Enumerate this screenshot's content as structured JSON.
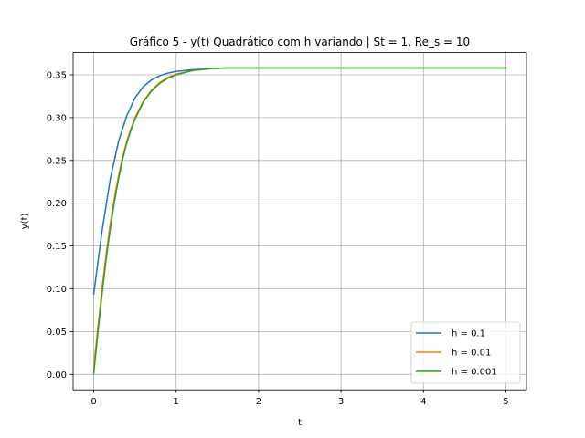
{
  "chart_data": {
    "type": "line",
    "title": "Gráfico 5 - y(t) Quadrático com h variando | St = 1, Re_s = 10",
    "xlabel": "t",
    "ylabel": "y(t)",
    "xlim": [
      -0.25,
      5.25
    ],
    "ylim": [
      -0.018,
      0.376
    ],
    "xticks": [
      0,
      1,
      2,
      3,
      4,
      5
    ],
    "xtick_labels": [
      "0",
      "1",
      "2",
      "3",
      "4",
      "5"
    ],
    "yticks": [
      0.0,
      0.05,
      0.1,
      0.15,
      0.2,
      0.25,
      0.3,
      0.35
    ],
    "ytick_labels": [
      "0.00",
      "0.05",
      "0.10",
      "0.15",
      "0.20",
      "0.25",
      "0.30",
      "0.35"
    ],
    "grid": true,
    "legend_position": "lower-right",
    "series": [
      {
        "name": "h = 0.1",
        "color": "#1f77b4",
        "x": [
          0,
          0.1,
          0.2,
          0.3,
          0.4,
          0.5,
          0.6,
          0.7,
          0.8,
          0.9,
          1.0,
          1.2,
          1.4,
          1.6,
          2.0,
          3.0,
          4.0,
          5.0
        ],
        "y": [
          0.094,
          0.167,
          0.228,
          0.272,
          0.302,
          0.323,
          0.336,
          0.344,
          0.349,
          0.352,
          0.354,
          0.356,
          0.357,
          0.358,
          0.358,
          0.358,
          0.358,
          0.358
        ]
      },
      {
        "name": "h = 0.01",
        "color": "#ff7f0e",
        "x": [
          0,
          0.05,
          0.1,
          0.15,
          0.2,
          0.25,
          0.3,
          0.35,
          0.4,
          0.45,
          0.5,
          0.6,
          0.7,
          0.8,
          0.9,
          1.0,
          1.2,
          1.4,
          1.6,
          2.0,
          3.0,
          4.0,
          5.0
        ],
        "y": [
          0.009,
          0.055,
          0.1,
          0.14,
          0.176,
          0.206,
          0.232,
          0.254,
          0.272,
          0.287,
          0.3,
          0.319,
          0.332,
          0.341,
          0.347,
          0.351,
          0.355,
          0.357,
          0.358,
          0.358,
          0.358,
          0.358,
          0.358
        ]
      },
      {
        "name": "h = 0.001",
        "color": "#2ca02c",
        "x": [
          0,
          0.05,
          0.1,
          0.15,
          0.2,
          0.25,
          0.3,
          0.35,
          0.4,
          0.45,
          0.5,
          0.6,
          0.7,
          0.8,
          0.9,
          1.0,
          1.2,
          1.4,
          1.6,
          2.0,
          3.0,
          4.0,
          5.0
        ],
        "y": [
          0.001,
          0.048,
          0.093,
          0.134,
          0.17,
          0.201,
          0.228,
          0.251,
          0.27,
          0.285,
          0.298,
          0.318,
          0.331,
          0.34,
          0.346,
          0.35,
          0.355,
          0.357,
          0.358,
          0.358,
          0.358,
          0.358,
          0.358
        ]
      }
    ]
  }
}
